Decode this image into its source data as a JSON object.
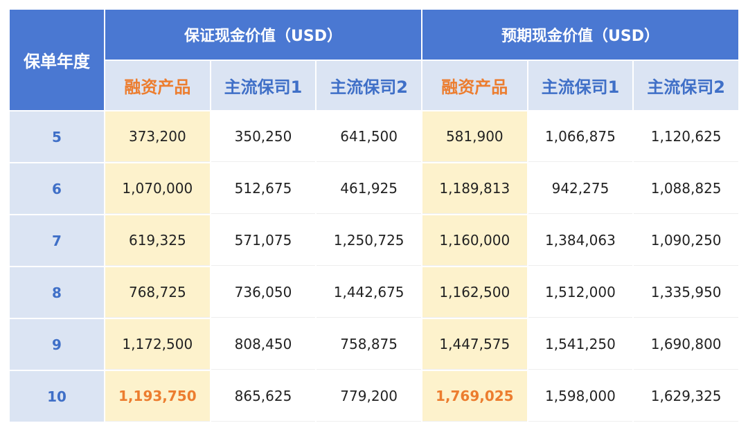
{
  "table": {
    "corner_header": "保单年度",
    "group_headers": [
      "保证现金价值（USD）",
      "预期现金价值（USD）"
    ],
    "sub_headers": [
      "融资产品",
      "主流保司1",
      "主流保司2",
      "融资产品",
      "主流保司1",
      "主流保司2"
    ],
    "rows": [
      {
        "year": "5",
        "cells": [
          "373,200",
          "350,250",
          "641,500",
          "581,900",
          "1,066,875",
          "1,120,625"
        ]
      },
      {
        "year": "6",
        "cells": [
          "1,070,000",
          "512,675",
          "461,925",
          "1,189,813",
          "942,275",
          "1,088,825"
        ]
      },
      {
        "year": "7",
        "cells": [
          "619,325",
          "571,075",
          "1,250,725",
          "1,160,000",
          "1,384,063",
          "1,090,250"
        ]
      },
      {
        "year": "8",
        "cells": [
          "768,725",
          "736,050",
          "1,442,675",
          "1,162,500",
          "1,512,000",
          "1,335,950"
        ]
      },
      {
        "year": "9",
        "cells": [
          "1,172,500",
          "808,450",
          "758,875",
          "1,447,575",
          "1,541,250",
          "1,690,800"
        ]
      },
      {
        "year": "10",
        "cells": [
          "1,193,750",
          "865,625",
          "779,200",
          "1,769,025",
          "1,598,000",
          "1,629,325"
        ]
      }
    ],
    "colors": {
      "header_blue": "#4a78d2",
      "sub_header_bg": "#dbe4f3",
      "accent_orange": "#ec7d2f",
      "highlight_col_bg": "#fdf2cc"
    }
  }
}
